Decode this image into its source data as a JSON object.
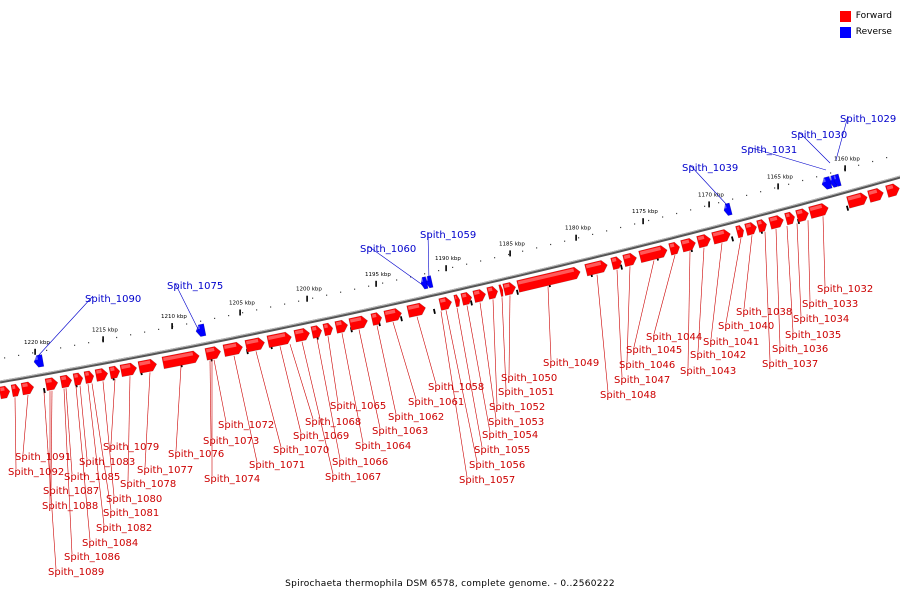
{
  "caption": "Spirochaeta thermophila DSM 6578, complete genome. - 0..2560222",
  "legend": [
    {
      "label": "Forward",
      "color": "#ff0000"
    },
    {
      "label": "Reverse",
      "color": "#0000ff"
    }
  ],
  "colors": {
    "forward": "#ff0000",
    "reverse": "#0000ff",
    "forward_label": "#cc0000",
    "reverse_label": "#0000cc",
    "backbone": "#666666"
  },
  "kbp_ticks": [
    "1160 kbp",
    "1165 kbp",
    "1170 kbp",
    "1175 kbp",
    "1180 kbp",
    "1185 kbp",
    "1190 kbp",
    "1195 kbp",
    "1200 kbp",
    "1205 kbp",
    "1210 kbp",
    "1215 kbp",
    "1220 kbp"
  ],
  "reverse_genes": [
    "Spith_1029",
    "Spith_1030",
    "Spith_1031",
    "Spith_1039",
    "Spith_1059",
    "Spith_1060",
    "Spith_1075",
    "Spith_1090"
  ],
  "forward_genes": [
    "Spith_1032",
    "Spith_1033",
    "Spith_1034",
    "Spith_1035",
    "Spith_1036",
    "Spith_1037",
    "Spith_1038",
    "Spith_1040",
    "Spith_1041",
    "Spith_1042",
    "Spith_1043",
    "Spith_1044",
    "Spith_1045",
    "Spith_1046",
    "Spith_1047",
    "Spith_1048",
    "Spith_1049",
    "Spith_1050",
    "Spith_1051",
    "Spith_1052",
    "Spith_1053",
    "Spith_1054",
    "Spith_1055",
    "Spith_1056",
    "Spith_1057",
    "Spith_1058",
    "Spith_1061",
    "Spith_1062",
    "Spith_1063",
    "Spith_1064",
    "Spith_1065",
    "Spith_1066",
    "Spith_1067",
    "Spith_1068",
    "Spith_1069",
    "Spith_1070",
    "Spith_1071",
    "Spith_1072",
    "Spith_1073",
    "Spith_1074",
    "Spith_1076",
    "Spith_1077",
    "Spith_1078",
    "Spith_1079",
    "Spith_1080",
    "Spith_1081",
    "Spith_1082",
    "Spith_1083",
    "Spith_1084",
    "Spith_1085",
    "Spith_1086",
    "Spith_1087",
    "Spith_1088",
    "Spith_1089",
    "Spith_1091",
    "Spith_1092"
  ]
}
